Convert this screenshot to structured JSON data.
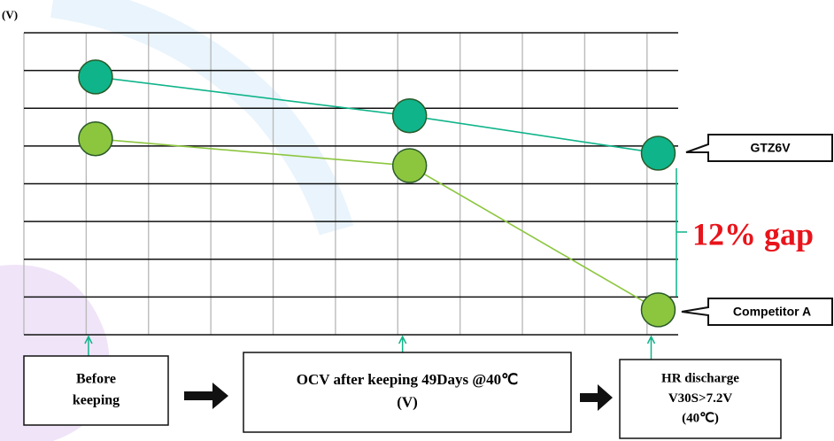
{
  "chart_data": {
    "type": "line",
    "y_unit": "(V)",
    "x": [
      1.15,
      6.19,
      10.18
    ],
    "xlim": [
      0,
      10.5
    ],
    "xticks": [
      0,
      1,
      2,
      3,
      4,
      5,
      6,
      7,
      8,
      9,
      10
    ],
    "ylim": [
      0,
      8
    ],
    "yticks": [
      0,
      1,
      2,
      3,
      4,
      5,
      6,
      7,
      8
    ],
    "grid": true,
    "series": [
      {
        "name": "GTZ6V",
        "color": "#0fb48a",
        "values": [
          6.83,
          5.8,
          4.81
        ]
      },
      {
        "name": "Competitor A",
        "color": "#8cc63f",
        "values": [
          5.19,
          4.48,
          0.66
        ]
      }
    ],
    "annotation": "12% gap",
    "stages": [
      [
        "Before",
        "keeping"
      ],
      [
        "OCV after keeping 49Days  @40℃",
        "(V)"
      ],
      [
        "HR discharge",
        "V30S>7.2V",
        "(40℃)"
      ]
    ]
  }
}
